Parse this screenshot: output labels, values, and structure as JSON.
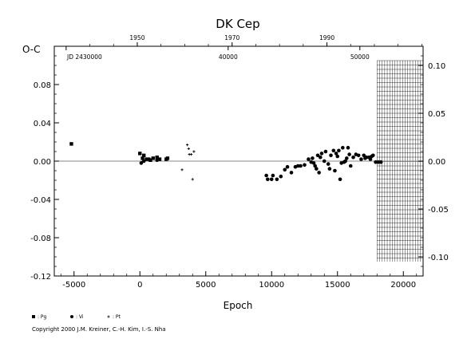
{
  "chart_data": {
    "type": "scatter",
    "title": "DK Cep",
    "ylabel": "O-C",
    "xlabel": "Epoch",
    "xlim": [
      -6500,
      21500
    ],
    "ylim": [
      -0.12,
      0.12
    ],
    "x_ticks": [
      -5000,
      0,
      5000,
      10000,
      15000,
      20000
    ],
    "y_ticks_left": [
      "0.08",
      "0.04",
      "0.00",
      "-0.04",
      "-0.08",
      "-0.12"
    ],
    "y_ticks_left_values": [
      0.08,
      0.04,
      0.0,
      -0.04,
      -0.08,
      -0.12
    ],
    "y_ticks_right": [
      "0.10",
      "0.05",
      "0.00",
      "-0.05",
      "-0.10"
    ],
    "y_ticks_right_values": [
      0.1,
      0.05,
      0.0,
      -0.05,
      -0.1
    ],
    "top_year_ticks": [
      {
        "label": "1950",
        "epoch": -200
      },
      {
        "label": "1970",
        "epoch": 7000
      },
      {
        "label": "1990",
        "epoch": 14200
      }
    ],
    "top_jd_ticks": [
      {
        "label": "JD 2430000",
        "epoch": -5600
      },
      {
        "label": "40000",
        "epoch": 6700
      },
      {
        "label": "50000",
        "epoch": 16700
      }
    ],
    "shaded_region_x": [
      18000,
      21500
    ],
    "zero_line": 0.0,
    "series": [
      {
        "name": "Pg",
        "marker": "square",
        "points": [
          [
            -5200,
            0.018
          ],
          [
            0,
            0.008
          ],
          [
            200,
            0.003
          ],
          [
            300,
            0.006
          ],
          [
            500,
            0.002
          ],
          [
            800,
            0.001
          ],
          [
            1000,
            0.003
          ],
          [
            1300,
            0.004
          ],
          [
            1500,
            0.002
          ],
          [
            2000,
            0.002
          ],
          [
            2100,
            0.003
          ]
        ]
      },
      {
        "name": "Vi",
        "marker": "circle",
        "points": [
          [
            100,
            -0.002
          ],
          [
            300,
            0.0
          ],
          [
            700,
            0.002
          ],
          [
            1300,
            0.001
          ],
          [
            9600,
            -0.015
          ],
          [
            9700,
            -0.019
          ],
          [
            10000,
            -0.019
          ],
          [
            10100,
            -0.015
          ],
          [
            10400,
            -0.019
          ],
          [
            10700,
            -0.016
          ],
          [
            11000,
            -0.009
          ],
          [
            11200,
            -0.006
          ],
          [
            11500,
            -0.012
          ],
          [
            11800,
            -0.006
          ],
          [
            12000,
            -0.005
          ],
          [
            12200,
            -0.005
          ],
          [
            12500,
            -0.004
          ],
          [
            12800,
            0.002
          ],
          [
            13000,
            -0.001
          ],
          [
            13100,
            0.003
          ],
          [
            13200,
            -0.002
          ],
          [
            13300,
            -0.005
          ],
          [
            13400,
            -0.008
          ],
          [
            13500,
            0.006
          ],
          [
            13600,
            -0.012
          ],
          [
            13700,
            0.004
          ],
          [
            13800,
            0.008
          ],
          [
            14000,
            0.0
          ],
          [
            14100,
            0.01
          ],
          [
            14300,
            -0.003
          ],
          [
            14400,
            -0.008
          ],
          [
            14500,
            0.006
          ],
          [
            14700,
            0.011
          ],
          [
            14800,
            -0.01
          ],
          [
            14900,
            0.008
          ],
          [
            15000,
            0.005
          ],
          [
            15100,
            0.011
          ],
          [
            15200,
            -0.019
          ],
          [
            15300,
            -0.002
          ],
          [
            15400,
            0.014
          ],
          [
            15500,
            -0.001
          ],
          [
            15600,
            0.0
          ],
          [
            15700,
            0.003
          ],
          [
            15800,
            0.014
          ],
          [
            15900,
            0.007
          ],
          [
            16000,
            -0.005
          ],
          [
            16200,
            0.004
          ],
          [
            16400,
            0.007
          ],
          [
            16600,
            0.006
          ],
          [
            16800,
            0.002
          ],
          [
            17000,
            0.006
          ],
          [
            17100,
            0.003
          ],
          [
            17200,
            0.004
          ],
          [
            17400,
            0.004
          ],
          [
            17500,
            0.002
          ],
          [
            17600,
            0.005
          ],
          [
            17700,
            0.006
          ],
          [
            17900,
            -0.001
          ],
          [
            18100,
            -0.001
          ],
          [
            18300,
            -0.001
          ]
        ]
      },
      {
        "name": "Pt",
        "marker": "plus",
        "points": [
          [
            3200,
            -0.009
          ],
          [
            3600,
            0.017
          ],
          [
            3700,
            0.013
          ],
          [
            3750,
            0.007
          ],
          [
            3900,
            0.007
          ],
          [
            4100,
            0.01
          ],
          [
            4000,
            -0.019
          ]
        ]
      }
    ],
    "legend": {
      "placement": "bottom-left",
      "items": [
        {
          "symbol": "square",
          "label": ": Pg"
        },
        {
          "symbol": "circle",
          "label": ": Vi"
        },
        {
          "symbol": "plus",
          "label": ": Pt"
        }
      ]
    },
    "colors": {
      "background": "#ffffff",
      "ink": "#000000",
      "zero_line": "#888888"
    }
  },
  "copyright": "Copyright 2000 J.M. Kreiner, C.-H. Kim, I.-S. Nha"
}
